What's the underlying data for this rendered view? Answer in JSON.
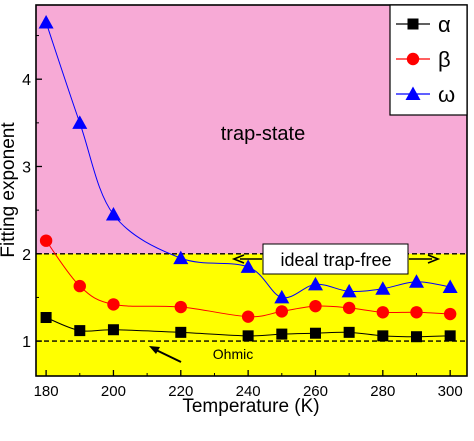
{
  "chart_data": {
    "type": "scatter",
    "xlabel": "Temperature (K)",
    "ylabel": "Fitting exponent",
    "xlim": [
      177,
      305
    ],
    "ylim": [
      0.6,
      4.85
    ],
    "x_ticks": [
      180,
      200,
      220,
      240,
      260,
      280,
      300
    ],
    "y_ticks": [
      1,
      2,
      3,
      4
    ],
    "grid": false,
    "legend_position": "top-right",
    "regions": [
      {
        "name": "trap-state",
        "from": 2,
        "to": 4.85,
        "color": "#f7aad6"
      },
      {
        "name": "trap-free",
        "from": 0.6,
        "to": 2,
        "color": "#ffff00"
      }
    ],
    "reference_lines": [
      {
        "y": 2,
        "style": "dashed"
      },
      {
        "y": 1,
        "style": "dashed"
      }
    ],
    "annotations": {
      "trap_state": "trap-state",
      "ideal_trap_free": "ideal trap-free",
      "ohmic": "Ohmic"
    },
    "series": [
      {
        "name": "α",
        "marker": "square",
        "color": "#000000",
        "x": [
          180,
          190,
          200,
          220,
          240,
          250,
          260,
          270,
          280,
          290,
          300
        ],
        "y": [
          1.27,
          1.12,
          1.13,
          1.1,
          1.06,
          1.08,
          1.09,
          1.1,
          1.06,
          1.05,
          1.06
        ]
      },
      {
        "name": "β",
        "marker": "circle",
        "color": "#ff0000",
        "x": [
          180,
          190,
          200,
          220,
          240,
          250,
          260,
          270,
          280,
          290,
          300
        ],
        "y": [
          2.15,
          1.63,
          1.42,
          1.39,
          1.28,
          1.34,
          1.4,
          1.38,
          1.33,
          1.33,
          1.31
        ]
      },
      {
        "name": "ω",
        "marker": "triangle",
        "color": "#0000ff",
        "x": [
          180,
          190,
          200,
          220,
          240,
          250,
          260,
          270,
          280,
          290,
          300
        ],
        "y": [
          4.65,
          3.5,
          2.45,
          1.95,
          1.85,
          1.5,
          1.65,
          1.57,
          1.6,
          1.68,
          1.62
        ]
      }
    ]
  }
}
